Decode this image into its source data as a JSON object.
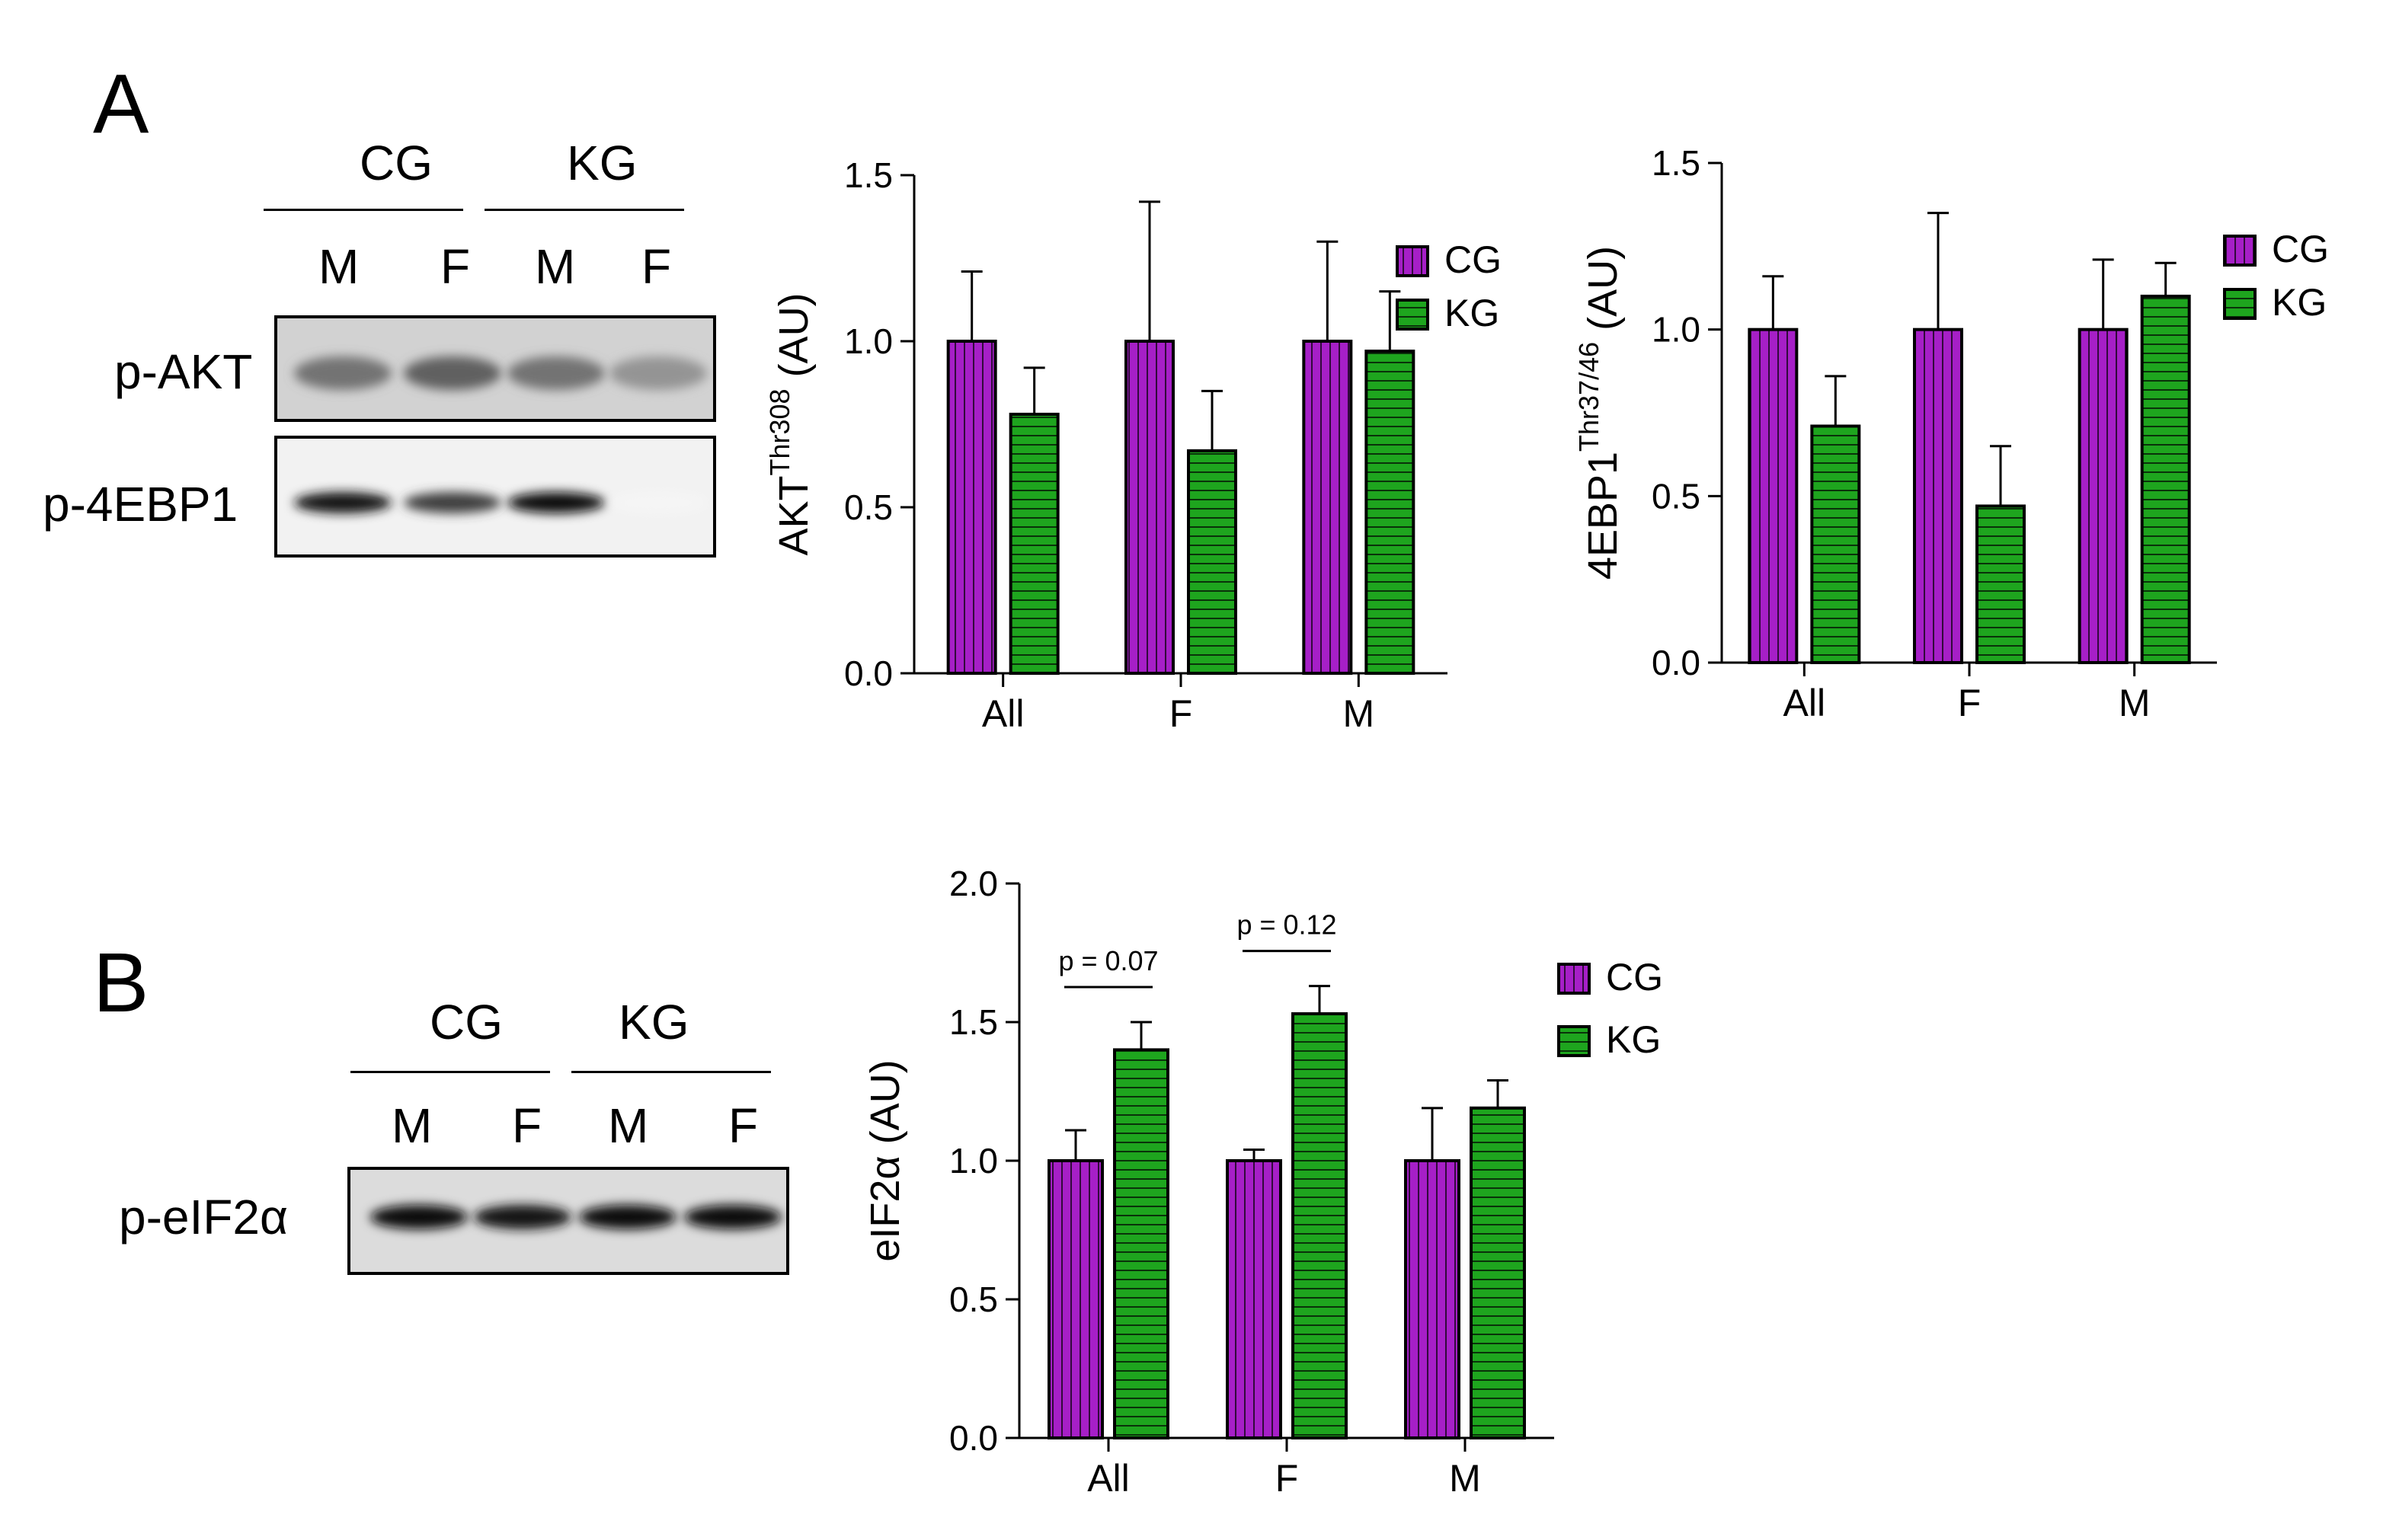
{
  "colors": {
    "CG": "#a61fc7",
    "KG": "#1ea51e",
    "axis": "#000000"
  },
  "panels": {
    "A": {
      "letter": "A",
      "blot": {
        "groups": [
          "CG",
          "KG"
        ],
        "lanes": [
          "M",
          "F",
          "M",
          "F"
        ],
        "rows": [
          "p-AKT",
          "p-4EBP1"
        ],
        "band_intensity": {
          "p-AKT": [
            0.55,
            0.62,
            0.55,
            0.42
          ],
          "p-4EBP1": [
            0.93,
            0.75,
            0.96,
            0.04
          ]
        }
      }
    },
    "B": {
      "letter": "B",
      "blot": {
        "groups": [
          "CG",
          "KG"
        ],
        "lanes": [
          "M",
          "F",
          "M",
          "F"
        ],
        "rows": [
          "p-eIF2α"
        ],
        "band_intensity": {
          "p-eIF2α": [
            0.95,
            0.9,
            0.95,
            0.97
          ]
        }
      }
    }
  },
  "chart_data": [
    {
      "type": "bar",
      "title": "",
      "ylabel": "AKT",
      "ylabel_sup": "Thr308",
      "ylabel_unit": "(AU)",
      "categories": [
        "All",
        "F",
        "M"
      ],
      "ylim": [
        0,
        1.5
      ],
      "yticks": [
        "0.0",
        "0.5",
        "1.0",
        "1.5"
      ],
      "legend_position": "right",
      "series": [
        {
          "name": "CG",
          "values": [
            1.0,
            1.0,
            1.0
          ],
          "errors": [
            0.21,
            0.42,
            0.3
          ]
        },
        {
          "name": "KG",
          "values": [
            0.78,
            0.67,
            0.97
          ],
          "errors": [
            0.14,
            0.18,
            0.18
          ]
        }
      ],
      "annotations": []
    },
    {
      "type": "bar",
      "title": "",
      "ylabel": "4EBP1",
      "ylabel_sup": "Thr37/46",
      "ylabel_unit": "(AU)",
      "categories": [
        "All",
        "F",
        "M"
      ],
      "ylim": [
        0,
        1.5
      ],
      "yticks": [
        "0.0",
        "0.5",
        "1.0",
        "1.5"
      ],
      "legend_position": "top-right",
      "series": [
        {
          "name": "CG",
          "values": [
            1.0,
            1.0,
            1.0
          ],
          "errors": [
            0.16,
            0.35,
            0.21
          ]
        },
        {
          "name": "KG",
          "values": [
            0.71,
            0.47,
            1.1
          ],
          "errors": [
            0.15,
            0.18,
            0.1
          ]
        }
      ],
      "annotations": []
    },
    {
      "type": "bar",
      "title": "",
      "ylabel": "eIF2α",
      "ylabel_sup": "",
      "ylabel_unit": "(AU)",
      "categories": [
        "All",
        "F",
        "M"
      ],
      "ylim": [
        0,
        2.0
      ],
      "yticks": [
        "0.0",
        "0.5",
        "1.0",
        "1.5",
        "2.0"
      ],
      "legend_position": "right",
      "series": [
        {
          "name": "CG",
          "values": [
            1.0,
            1.0,
            1.0
          ],
          "errors": [
            0.11,
            0.04,
            0.19
          ]
        },
        {
          "name": "KG",
          "values": [
            1.4,
            1.53,
            1.19
          ],
          "errors": [
            0.1,
            0.1,
            0.1
          ]
        }
      ],
      "annotations": [
        {
          "text": "p = 0.07",
          "category": "All"
        },
        {
          "text": "p = 0.12",
          "category": "F"
        }
      ]
    }
  ]
}
